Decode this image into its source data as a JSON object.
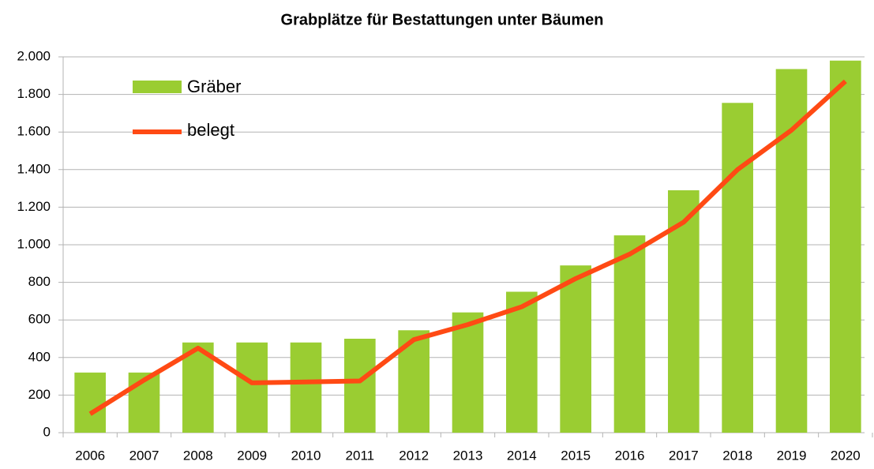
{
  "chart_data": {
    "type": "bar+line",
    "title": "Grabplätze für Bestattungen unter Bäumen",
    "categories": [
      "2006",
      "2007",
      "2008",
      "2009",
      "2010",
      "2011",
      "2012",
      "2013",
      "2014",
      "2015",
      "2016",
      "2017",
      "2018",
      "2019",
      "2020"
    ],
    "series": [
      {
        "name": "Gräber",
        "type": "bar",
        "color": "#9acd32",
        "values": [
          320,
          320,
          480,
          480,
          480,
          500,
          545,
          640,
          750,
          890,
          1050,
          1290,
          1755,
          1935,
          1980
        ]
      },
      {
        "name": "belegt",
        "type": "line",
        "color": "#ff4a14",
        "values": [
          100,
          280,
          450,
          265,
          270,
          275,
          495,
          575,
          670,
          820,
          950,
          1120,
          1400,
          1610,
          1870
        ]
      }
    ],
    "ylim": [
      0,
      2000
    ],
    "yticks": [
      0,
      200,
      400,
      600,
      800,
      {
        "value": 1000,
        "label": "1.000"
      },
      {
        "value": 1200,
        "label": "1.200"
      },
      {
        "value": 1400,
        "label": "1.400"
      },
      {
        "value": 1600,
        "label": "1.600"
      },
      {
        "value": 1800,
        "label": "1.800"
      },
      {
        "value": 2000,
        "label": "2.000"
      }
    ],
    "grid": true,
    "legend": "top-left"
  }
}
